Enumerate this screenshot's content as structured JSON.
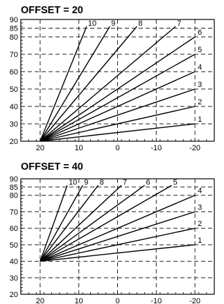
{
  "chart_data": [
    {
      "type": "line",
      "title": "OFFSET = 20",
      "xlabel": "",
      "ylabel": "",
      "x_ticks": [
        "20",
        "10",
        "0",
        "-10",
        "-20"
      ],
      "y_ticks": [
        "20",
        "30",
        "40",
        "50",
        "60",
        "70",
        "80",
        "85",
        "90"
      ],
      "xlim": [
        25,
        -25
      ],
      "ylim": [
        20,
        90
      ],
      "grid": true,
      "series": [
        {
          "name": "1",
          "x": [
            20,
            -20
          ],
          "y": [
            20,
            30
          ]
        },
        {
          "name": "2",
          "x": [
            20,
            -20
          ],
          "y": [
            20,
            40
          ]
        },
        {
          "name": "3",
          "x": [
            20,
            -20
          ],
          "y": [
            20,
            50
          ]
        },
        {
          "name": "4",
          "x": [
            20,
            -20
          ],
          "y": [
            20,
            60
          ]
        },
        {
          "name": "5",
          "x": [
            20,
            -20
          ],
          "y": [
            20,
            70
          ]
        },
        {
          "name": "6",
          "x": [
            20,
            -20
          ],
          "y": [
            20,
            80
          ]
        },
        {
          "name": "7",
          "x": [
            20,
            -15
          ],
          "y": [
            20,
            86
          ]
        },
        {
          "name": "8",
          "x": [
            20,
            -5
          ],
          "y": [
            20,
            86
          ]
        },
        {
          "name": "9",
          "x": [
            20,
            2
          ],
          "y": [
            20,
            86
          ]
        },
        {
          "name": "10",
          "x": [
            20,
            8
          ],
          "y": [
            20,
            86
          ]
        }
      ]
    },
    {
      "type": "line",
      "title": "OFFSET = 40",
      "xlabel": "",
      "ylabel": "",
      "x_ticks": [
        "20",
        "10",
        "0",
        "-10",
        "-20"
      ],
      "y_ticks": [
        "20",
        "30",
        "40",
        "50",
        "60",
        "70",
        "80",
        "85",
        "90"
      ],
      "xlim": [
        25,
        -25
      ],
      "ylim": [
        20,
        90
      ],
      "grid": true,
      "series": [
        {
          "name": "1",
          "x": [
            20,
            -20
          ],
          "y": [
            40,
            50
          ]
        },
        {
          "name": "2",
          "x": [
            20,
            -20
          ],
          "y": [
            40,
            60
          ]
        },
        {
          "name": "3",
          "x": [
            20,
            -20
          ],
          "y": [
            40,
            70
          ]
        },
        {
          "name": "4",
          "x": [
            20,
            -20
          ],
          "y": [
            40,
            80
          ]
        },
        {
          "name": "5",
          "x": [
            20,
            -14
          ],
          "y": [
            40,
            86
          ]
        },
        {
          "name": "6",
          "x": [
            20,
            -7
          ],
          "y": [
            40,
            86
          ]
        },
        {
          "name": "7",
          "x": [
            20,
            -1
          ],
          "y": [
            40,
            86
          ]
        },
        {
          "name": "8",
          "x": [
            20,
            5
          ],
          "y": [
            40,
            86
          ]
        },
        {
          "name": "9",
          "x": [
            20,
            9
          ],
          "y": [
            40,
            86
          ]
        },
        {
          "name": "10",
          "x": [
            20,
            13
          ],
          "y": [
            40,
            86
          ]
        }
      ]
    }
  ]
}
